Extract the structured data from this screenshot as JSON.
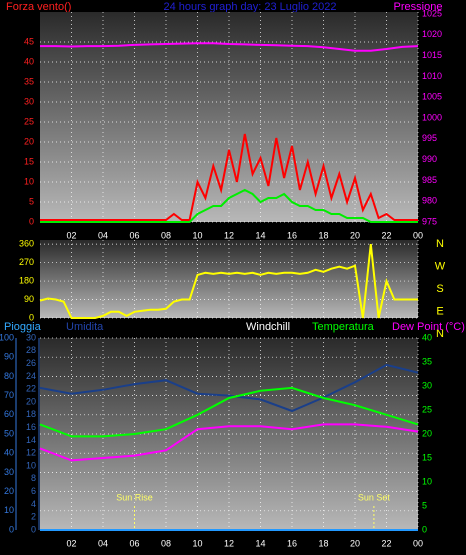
{
  "chart_data": [
    {
      "type": "line",
      "title": "24 hours graph day: 23 Luglio 2022",
      "ylabel": "Forza vento()",
      "y2label": "Pressione",
      "x": [
        0,
        0.5,
        1,
        1.5,
        2,
        2.5,
        3,
        3.5,
        4,
        4.5,
        5,
        5.5,
        6,
        6.5,
        7,
        7.5,
        8,
        8.5,
        9,
        9.5,
        10,
        10.5,
        11,
        11.5,
        12,
        12.5,
        13,
        13.5,
        14,
        14.5,
        15,
        15.5,
        16,
        16.5,
        17,
        17.5,
        18,
        18.5,
        19,
        19.5,
        20,
        20.5,
        21,
        21.5,
        22,
        22.5,
        23,
        23.5,
        24
      ],
      "xlim": [
        0,
        24
      ],
      "xticks": [
        {
          "value": 2,
          "label": "02"
        },
        {
          "value": 4,
          "label": "04"
        },
        {
          "value": 6,
          "label": "06"
        },
        {
          "value": 8,
          "label": "08"
        },
        10,
        12,
        14,
        16,
        18,
        20,
        22,
        {
          "value": 24,
          "label": "00"
        }
      ],
      "ylim": [
        0,
        52.5
      ],
      "yticks": [
        0,
        5,
        10,
        15,
        20,
        25,
        30,
        35,
        40,
        45
      ],
      "ycolor": "#ff2020",
      "y2lim": [
        975,
        1025.5
      ],
      "y2ticks": [
        975,
        980,
        985,
        990,
        995,
        1000,
        1005,
        1010,
        1015,
        1020,
        1025
      ],
      "y2color": "#ff00ff",
      "series": [
        {
          "color": "#ff0000",
          "values": [
            0.5,
            0.5,
            0.5,
            0.5,
            0.5,
            0.5,
            0.5,
            0.5,
            0.5,
            0.5,
            0.5,
            0.5,
            0.5,
            0.5,
            0.5,
            0.5,
            0.5,
            2,
            0.5,
            0.5,
            10,
            6,
            14,
            8,
            18,
            10,
            22,
            12,
            16,
            9,
            21,
            11,
            19,
            8,
            15,
            7,
            14,
            6,
            12,
            5,
            11,
            3,
            7,
            1,
            2,
            0.5,
            0.5,
            0.5,
            0.5
          ]
        },
        {
          "color": "#00ee00",
          "values": [
            0,
            0,
            0,
            0,
            0,
            0,
            0,
            0,
            0,
            0,
            0,
            0,
            0,
            0,
            0,
            0,
            0,
            0,
            0,
            0,
            2,
            3,
            4,
            4,
            6,
            7,
            8,
            7,
            5,
            6,
            6,
            7,
            5,
            4,
            4,
            3,
            3,
            2,
            2,
            1,
            1,
            1,
            0,
            0,
            0,
            0,
            0,
            0,
            0
          ]
        },
        {
          "color": "#ff00ff",
          "axis": "y2",
          "x": [
            0,
            1,
            2,
            3,
            4,
            5,
            6,
            7,
            8,
            9,
            10,
            11,
            12,
            13,
            14,
            15,
            16,
            17,
            18,
            19,
            20,
            21,
            22,
            23,
            24
          ],
          "values": [
            1017.3,
            1017.3,
            1017.2,
            1017.3,
            1017.3,
            1017.4,
            1017.6,
            1017.7,
            1017.8,
            1017.9,
            1018.0,
            1018.0,
            1017.8,
            1017.7,
            1017.6,
            1017.5,
            1017.4,
            1017.3,
            1017.0,
            1016.6,
            1016.2,
            1016.2,
            1016.6,
            1017.1,
            1017.3
          ]
        }
      ]
    },
    {
      "type": "line",
      "x": [
        0,
        0.5,
        1,
        1.5,
        2,
        2.5,
        3,
        3.5,
        4,
        4.5,
        5,
        5.5,
        6,
        6.5,
        7,
        7.5,
        8,
        8.5,
        9,
        9.5,
        10,
        10.5,
        11,
        11.5,
        12,
        12.5,
        13,
        13.5,
        14,
        14.5,
        15,
        15.5,
        16,
        16.5,
        17,
        17.5,
        18,
        18.5,
        19,
        19.5,
        20,
        20.5,
        21,
        21.5,
        22,
        22.5,
        23,
        23.5,
        24
      ],
      "xlim": [
        0,
        24
      ],
      "ylim": [
        0,
        380
      ],
      "yticks": [
        0,
        90,
        180,
        270,
        360
      ],
      "ycolor": "#ffff00",
      "compass_labels": [
        "N",
        "W",
        "S",
        "E",
        "N"
      ],
      "series": [
        {
          "color": "#ffff00",
          "values": [
            85,
            95,
            90,
            80,
            0,
            0,
            0,
            0,
            10,
            30,
            30,
            10,
            30,
            35,
            40,
            40,
            45,
            80,
            90,
            90,
            210,
            220,
            215,
            220,
            215,
            220,
            215,
            220,
            210,
            220,
            215,
            220,
            220,
            215,
            220,
            235,
            225,
            240,
            250,
            240,
            255,
            0,
            360,
            0,
            180,
            90,
            90,
            90,
            90
          ]
        }
      ]
    },
    {
      "type": "line",
      "header_labels": [
        {
          "text": "Pioggia",
          "color": "#33aaff"
        },
        {
          "text": "Umidita",
          "color": "#2244aa"
        },
        {
          "text": "Windchill",
          "color": "#ffffff"
        },
        {
          "text": "Temperatura",
          "color": "#00ff00"
        },
        {
          "text": "Dew Point (°C)",
          "color": "#ff00ff"
        }
      ],
      "x": [
        0,
        2,
        4,
        6,
        8,
        10,
        12,
        14,
        16,
        18,
        20,
        22,
        24
      ],
      "xlim": [
        0,
        24
      ],
      "xticks": [
        {
          "value": 2,
          "label": "02"
        },
        {
          "value": 4,
          "label": "04"
        },
        {
          "value": 6,
          "label": "06"
        },
        {
          "value": 8,
          "label": "08"
        },
        10,
        12,
        14,
        16,
        18,
        20,
        22,
        {
          "value": 24,
          "label": "00"
        }
      ],
      "ylim": [
        0,
        100
      ],
      "yticks": [
        0,
        10,
        20,
        30,
        40,
        50,
        60,
        70,
        80,
        90,
        100
      ],
      "ycolor": "#3377dd",
      "y3lim": [
        0,
        30
      ],
      "y3ticks": [
        0,
        2,
        4,
        6,
        8,
        10,
        12,
        14,
        16,
        18,
        20,
        22,
        24,
        26,
        28,
        30
      ],
      "y3color": "#3366bb",
      "y2lim": [
        0,
        40
      ],
      "y2ticks": [
        0,
        5,
        10,
        15,
        20,
        25,
        30,
        35,
        40
      ],
      "y2color": "#00ff00",
      "annotations": [
        {
          "text": "Sun Rise",
          "x": 6
        },
        {
          "text": "Sun Set",
          "x": 21.2
        }
      ],
      "series": [
        {
          "color": "#1a3f8a",
          "values": [
            74,
            71,
            73,
            76,
            78,
            71,
            70,
            68,
            62,
            69,
            77,
            86,
            82
          ]
        },
        {
          "color": "#00ff00",
          "axis": "y2",
          "values": [
            22,
            19.5,
            19.5,
            20,
            21,
            24,
            27.5,
            29,
            29.6,
            27.5,
            26,
            24,
            22
          ]
        },
        {
          "color": "#ff00ff",
          "axis": "y2",
          "values": [
            17,
            14.5,
            15,
            15.5,
            16.6,
            21,
            21.6,
            21.6,
            21,
            22,
            22,
            21.5,
            20.5
          ]
        },
        {
          "color": "#2299ff",
          "axis": "y3",
          "values": [
            0,
            0,
            0,
            0,
            0,
            0,
            0,
            0,
            0,
            0,
            0,
            0,
            0
          ]
        }
      ]
    }
  ]
}
